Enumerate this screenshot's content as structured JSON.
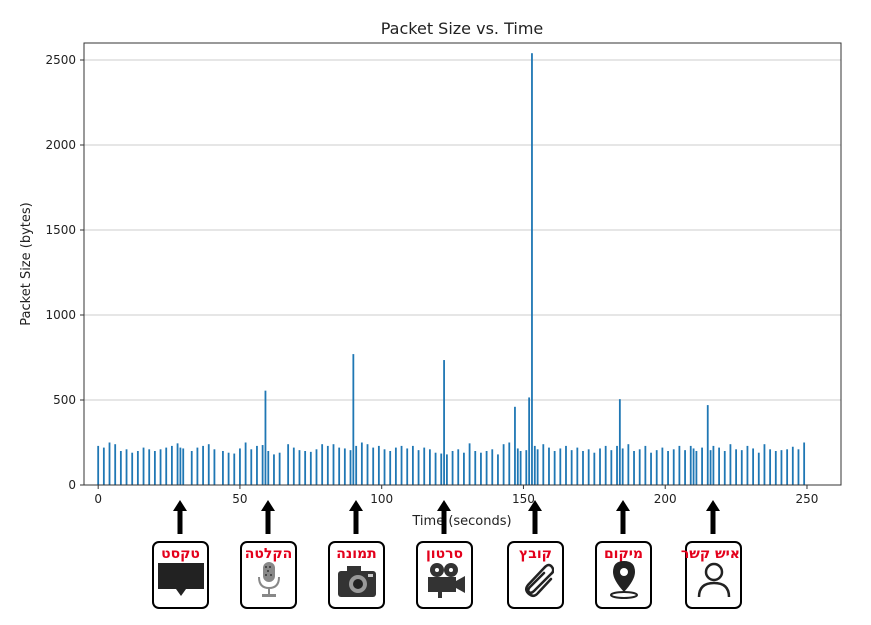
{
  "chart_data": {
    "type": "bar",
    "title": "Packet Size vs. Time",
    "xlabel": "Time (seconds)",
    "ylabel": "Packet Size (bytes)",
    "xlim": [
      -5,
      262
    ],
    "ylim": [
      0,
      2600
    ],
    "xticks": [
      0,
      50,
      100,
      150,
      200,
      250
    ],
    "yticks": [
      0,
      500,
      1000,
      1500,
      2000,
      2500
    ],
    "grid": "horizontal",
    "bar_color": "#1f77b4",
    "x": [
      0,
      2,
      4,
      6,
      8,
      10,
      12,
      14,
      16,
      18,
      20,
      22,
      24,
      26,
      28,
      29,
      30,
      33,
      35,
      37,
      39,
      41,
      44,
      46,
      48,
      50,
      52,
      54,
      56,
      58,
      59,
      60,
      62,
      64,
      67,
      69,
      71,
      73,
      75,
      77,
      79,
      81,
      83,
      85,
      87,
      89,
      90,
      91,
      93,
      95,
      97,
      99,
      101,
      103,
      105,
      107,
      109,
      111,
      113,
      115,
      117,
      119,
      121,
      122,
      123,
      125,
      127,
      129,
      131,
      133,
      135,
      137,
      139,
      141,
      143,
      145,
      147,
      148,
      149,
      151,
      152,
      153,
      154,
      155,
      157,
      159,
      161,
      163,
      165,
      167,
      169,
      171,
      173,
      175,
      177,
      179,
      181,
      183,
      184,
      185,
      187,
      189,
      191,
      193,
      195,
      197,
      199,
      201,
      203,
      205,
      207,
      209,
      210,
      211,
      213,
      215,
      216,
      217,
      219,
      221,
      223,
      225,
      227,
      229,
      231,
      233,
      235,
      237,
      239,
      241,
      243,
      245,
      247,
      249
    ],
    "values": [
      230,
      220,
      250,
      240,
      200,
      210,
      190,
      200,
      220,
      210,
      200,
      210,
      220,
      230,
      245,
      220,
      215,
      200,
      220,
      230,
      240,
      210,
      200,
      190,
      185,
      215,
      250,
      210,
      230,
      235,
      555,
      200,
      180,
      190,
      240,
      220,
      205,
      200,
      195,
      210,
      240,
      230,
      240,
      220,
      215,
      205,
      770,
      230,
      250,
      240,
      220,
      230,
      210,
      200,
      220,
      230,
      215,
      230,
      205,
      220,
      210,
      190,
      185,
      735,
      180,
      200,
      210,
      190,
      245,
      200,
      190,
      200,
      210,
      180,
      240,
      250,
      460,
      215,
      200,
      205,
      515,
      2540,
      230,
      210,
      240,
      220,
      200,
      215,
      230,
      205,
      220,
      200,
      210,
      190,
      215,
      230,
      205,
      230,
      505,
      215,
      240,
      200,
      210,
      230,
      190,
      205,
      220,
      200,
      210,
      230,
      205,
      230,
      215,
      200,
      220,
      470,
      205,
      230,
      220,
      200,
      240,
      210,
      205,
      230,
      215,
      190,
      240,
      210,
      200,
      205,
      210,
      225,
      210,
      250
    ]
  },
  "icons": [
    {
      "label": "טקסט",
      "icon": "speech-bubble-icon",
      "x": 29
    },
    {
      "label": "הקלטה",
      "icon": "microphone-icon",
      "x": 60
    },
    {
      "label": "תמונה",
      "icon": "camera-icon",
      "x": 91
    },
    {
      "label": "סרטון",
      "icon": "video-camera-icon",
      "x": 122
    },
    {
      "label": "קובץ",
      "icon": "paperclip-icon",
      "x": 154
    },
    {
      "label": "מיקום",
      "icon": "location-pin-icon",
      "x": 185
    },
    {
      "label": "איש קשר",
      "icon": "contact-person-icon",
      "x": 217
    }
  ],
  "colors": {
    "icon_label": "#e3001b",
    "grid": "#cccccc",
    "axes": "#333333"
  }
}
